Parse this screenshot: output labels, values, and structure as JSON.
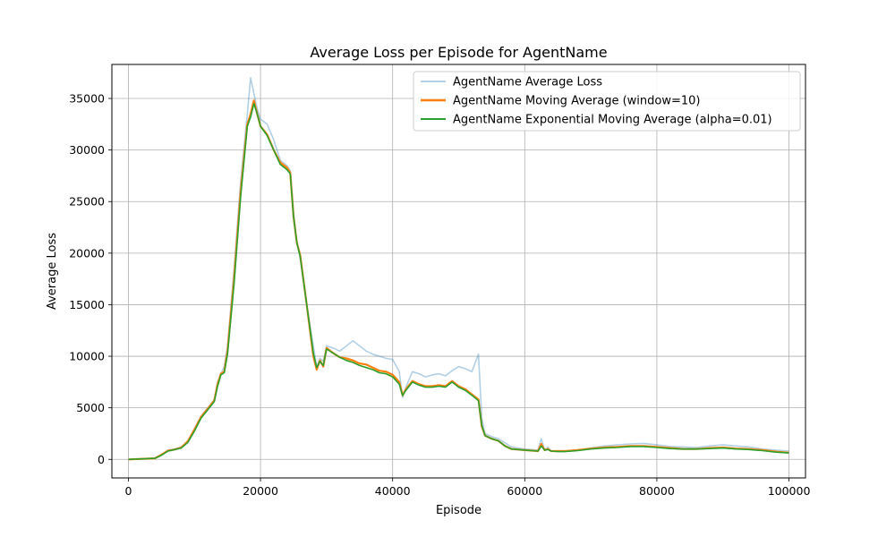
{
  "chart_data": {
    "type": "line",
    "title": "Average Loss per Episode for AgentName",
    "xlabel": "Episode",
    "ylabel": "Average Loss",
    "xlim": [
      -2500,
      102500
    ],
    "ylim": [
      -1800,
      38300
    ],
    "x_ticks": [
      0,
      20000,
      40000,
      60000,
      80000,
      100000
    ],
    "y_ticks": [
      0,
      5000,
      10000,
      15000,
      20000,
      25000,
      30000,
      35000
    ],
    "grid": true,
    "legend_position": "top-right",
    "colors": {
      "raw": "#1f77b4",
      "moving_average": "#ff7f0e",
      "ema": "#2ca02c",
      "grid": "#b0b0b0",
      "frame": "#000000"
    },
    "series": [
      {
        "name": "AgentName Average Loss",
        "key": "raw",
        "x": [
          0,
          4000,
          5000,
          6000,
          7000,
          8000,
          9000,
          10000,
          11000,
          12000,
          13000,
          13500,
          14000,
          14500,
          15000,
          16000,
          17000,
          18000,
          18500,
          19000,
          19500,
          20000,
          21000,
          22000,
          23000,
          24000,
          24500,
          25000,
          25500,
          26000,
          27000,
          28000,
          28500,
          29000,
          29500,
          30000,
          31000,
          32000,
          33000,
          34000,
          35000,
          36000,
          37000,
          38000,
          39000,
          40000,
          41000,
          41500,
          42000,
          43000,
          44000,
          45000,
          46000,
          47000,
          48000,
          49000,
          50000,
          51000,
          52000,
          53000,
          53500,
          54000,
          55000,
          56000,
          57000,
          58000,
          60000,
          62000,
          62500,
          63000,
          63500,
          64000,
          65000,
          66000,
          68000,
          70000,
          72000,
          74000,
          76000,
          78000,
          80000,
          82000,
          84000,
          86000,
          88000,
          90000,
          92000,
          94000,
          95000,
          96000,
          98000,
          100000
        ],
        "y": [
          0,
          100,
          450,
          900,
          1000,
          1200,
          1800,
          3000,
          4200,
          5000,
          5800,
          7500,
          8300,
          9000,
          11000,
          18500,
          27000,
          33500,
          37000,
          35500,
          34000,
          33000,
          32500,
          31000,
          29000,
          28500,
          28000,
          24000,
          21000,
          19500,
          15000,
          11000,
          9000,
          9800,
          9500,
          11000,
          10800,
          10500,
          11000,
          11500,
          11000,
          10500,
          10200,
          10000,
          9800,
          9700,
          8500,
          6000,
          7000,
          8500,
          8300,
          8000,
          8200,
          8300,
          8100,
          8600,
          9000,
          8800,
          8500,
          10200,
          4000,
          2500,
          2200,
          2000,
          1600,
          1200,
          1000,
          900,
          2000,
          900,
          1200,
          800,
          800,
          800,
          900,
          1100,
          1300,
          1400,
          1500,
          1550,
          1400,
          1250,
          1200,
          1150,
          1300,
          1400,
          1300,
          1200,
          1100,
          1000,
          900,
          800
        ]
      },
      {
        "name": "AgentName Moving Average (window=10)",
        "key": "moving_average",
        "x": [
          0,
          4000,
          5000,
          6000,
          7000,
          8000,
          9000,
          10000,
          11000,
          12000,
          13000,
          13500,
          14000,
          14500,
          15000,
          16000,
          17000,
          18000,
          18500,
          19000,
          19500,
          20000,
          21000,
          22000,
          23000,
          24000,
          24500,
          25000,
          25500,
          26000,
          27000,
          28000,
          28500,
          29000,
          29500,
          30000,
          31000,
          32000,
          33000,
          34000,
          35000,
          36000,
          37000,
          38000,
          39000,
          40000,
          41000,
          41500,
          42000,
          43000,
          44000,
          45000,
          46000,
          47000,
          48000,
          49000,
          50000,
          51000,
          52000,
          53000,
          53500,
          54000,
          55000,
          56000,
          57000,
          58000,
          60000,
          62000,
          62500,
          63000,
          63500,
          64000,
          65000,
          66000,
          68000,
          70000,
          72000,
          74000,
          76000,
          78000,
          80000,
          82000,
          84000,
          86000,
          88000,
          90000,
          92000,
          94000,
          95000,
          96000,
          98000,
          100000
        ],
        "y": [
          0,
          100,
          450,
          850,
          950,
          1150,
          1750,
          2900,
          4100,
          4900,
          5700,
          7300,
          8300,
          8500,
          10500,
          17500,
          26000,
          32500,
          33500,
          34800,
          33500,
          32300,
          31500,
          30000,
          28800,
          28300,
          27800,
          23500,
          21000,
          19800,
          15000,
          10000,
          8700,
          9600,
          9000,
          10800,
          10300,
          9900,
          9800,
          9600,
          9300,
          9200,
          8900,
          8600,
          8500,
          8200,
          7500,
          6200,
          6800,
          7600,
          7300,
          7100,
          7100,
          7200,
          7100,
          7600,
          7100,
          6800,
          6300,
          5800,
          3200,
          2300,
          2000,
          1800,
          1300,
          1000,
          900,
          800,
          1500,
          900,
          1000,
          800,
          800,
          800,
          900,
          1050,
          1150,
          1200,
          1300,
          1300,
          1200,
          1100,
          1000,
          1000,
          1100,
          1150,
          1050,
          1000,
          950,
          900,
          750,
          650
        ]
      },
      {
        "name": "AgentName Exponential Moving Average (alpha=0.01)",
        "key": "ema",
        "x": [
          0,
          4000,
          5000,
          6000,
          7000,
          8000,
          9000,
          10000,
          11000,
          12000,
          13000,
          13500,
          14000,
          14500,
          15000,
          16000,
          17000,
          18000,
          18500,
          19000,
          19500,
          20000,
          21000,
          22000,
          23000,
          24000,
          24500,
          25000,
          25500,
          26000,
          27000,
          28000,
          28500,
          29000,
          29500,
          30000,
          31000,
          32000,
          33000,
          34000,
          35000,
          36000,
          37000,
          38000,
          39000,
          40000,
          41000,
          41500,
          42000,
          43000,
          44000,
          45000,
          46000,
          47000,
          48000,
          49000,
          50000,
          51000,
          52000,
          53000,
          53500,
          54000,
          55000,
          56000,
          57000,
          58000,
          60000,
          62000,
          62500,
          63000,
          63500,
          64000,
          65000,
          66000,
          68000,
          70000,
          72000,
          74000,
          76000,
          78000,
          80000,
          82000,
          84000,
          86000,
          88000,
          90000,
          92000,
          94000,
          95000,
          96000,
          98000,
          100000
        ],
        "y": [
          0,
          100,
          400,
          800,
          950,
          1100,
          1650,
          2750,
          4000,
          4800,
          5600,
          7100,
          8200,
          8400,
          10200,
          17000,
          25500,
          32300,
          33200,
          34500,
          33500,
          32300,
          31400,
          30000,
          28600,
          28100,
          27700,
          23500,
          21000,
          19700,
          15000,
          10300,
          8900,
          9500,
          9100,
          10700,
          10300,
          9900,
          9600,
          9400,
          9100,
          8900,
          8700,
          8400,
          8300,
          8000,
          7300,
          6200,
          6700,
          7500,
          7200,
          7000,
          7000,
          7100,
          7000,
          7500,
          7000,
          6700,
          6200,
          5700,
          3300,
          2300,
          2000,
          1800,
          1300,
          1000,
          900,
          800,
          1300,
          900,
          950,
          800,
          750,
          750,
          850,
          1000,
          1100,
          1150,
          1250,
          1250,
          1150,
          1050,
          1000,
          1000,
          1050,
          1100,
          1000,
          950,
          900,
          850,
          700,
          620
        ]
      }
    ]
  }
}
